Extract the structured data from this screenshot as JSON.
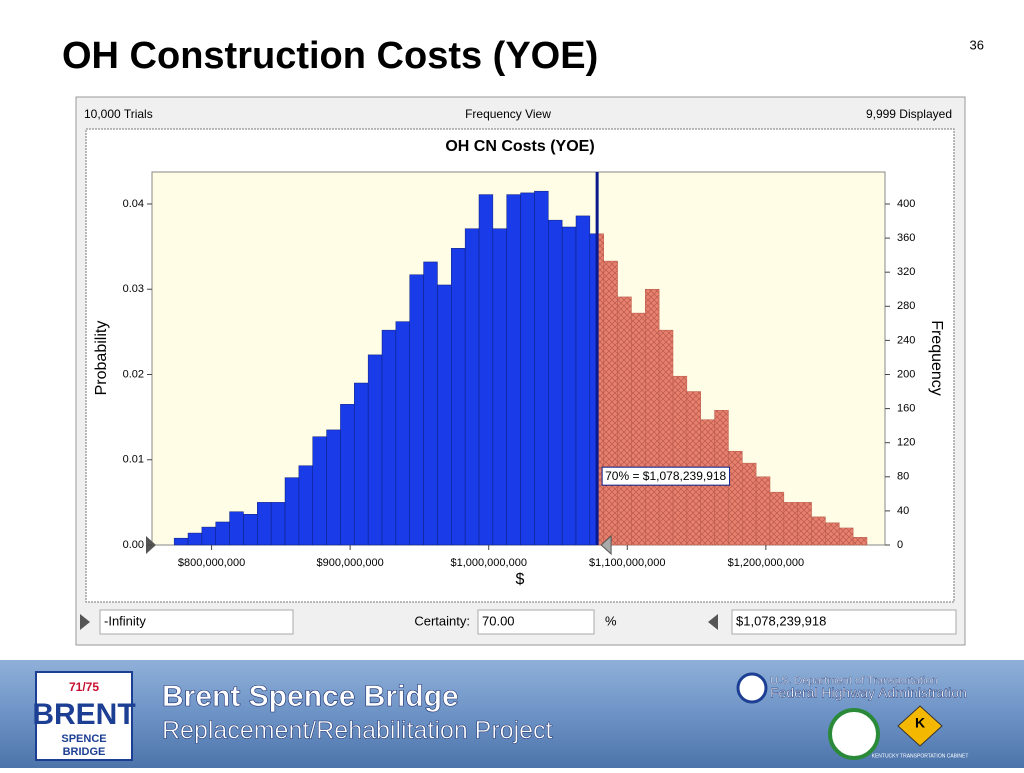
{
  "slide": {
    "title": "OH Construction Costs (YOE)",
    "page_number": "36"
  },
  "header": {
    "trials": "10,000 Trials",
    "view": "Frequency View",
    "displayed": "9,999 Displayed"
  },
  "chart_data": {
    "type": "histogram",
    "title": "OH CN Costs (YOE)",
    "x_label": "$",
    "y_label": "Probability",
    "y2_label": "Frequency",
    "bins": [
      773000000,
      783000000,
      793000000,
      803000000,
      813000000,
      823000000,
      833000000,
      843000000,
      853000000,
      863000000,
      873000000,
      883000000,
      893000000,
      903000000,
      913000000,
      923000000,
      933000000,
      943000000,
      953000000,
      963000000,
      973000000,
      983000000,
      993000000,
      1003000000,
      1013000000,
      1023000000,
      1033000000,
      1043000000,
      1053000000,
      1063000000,
      1073000000,
      1083000000,
      1093000000,
      1103000000,
      1113000000,
      1123000000,
      1133000000,
      1143000000,
      1153000000,
      1163000000,
      1173000000,
      1183000000,
      1193000000,
      1203000000,
      1213000000,
      1223000000,
      1233000000,
      1243000000,
      1253000000,
      1263000000,
      1273000000
    ],
    "values": [
      0.0008,
      0.0014,
      0.0021,
      0.0027,
      0.0039,
      0.0036,
      0.005,
      0.005,
      0.0079,
      0.0093,
      0.0127,
      0.0135,
      0.0165,
      0.019,
      0.0223,
      0.0252,
      0.0262,
      0.0317,
      0.0332,
      0.0305,
      0.0348,
      0.0371,
      0.0411,
      0.0371,
      0.0411,
      0.0413,
      0.0415,
      0.0381,
      0.0373,
      0.0386,
      0.0365,
      0.0333,
      0.0291,
      0.0272,
      0.03,
      0.0252,
      0.0198,
      0.018,
      0.0147,
      0.0158,
      0.011,
      0.0096,
      0.008,
      0.0062,
      0.005,
      0.005,
      0.0033,
      0.0026,
      0.002,
      0.0009
    ],
    "left_color": "#1a3be8",
    "right_color": "#e8806e",
    "hatch_color": "#b85a4c",
    "cutoff_color": "#0a1a8c",
    "cutoff": 1078239918,
    "cutoff_label": "70% = $1,078,239,918",
    "xlim": [
      757000000,
      1286000000
    ],
    "xticks": [
      {
        "value": 800000000,
        "label": "$800,000,000"
      },
      {
        "value": 900000000,
        "label": "$900,000,000"
      },
      {
        "value": 1000000000,
        "label": "$1,000,000,000"
      },
      {
        "value": 1100000000,
        "label": "$1,100,000,000"
      },
      {
        "value": 1200000000,
        "label": "$1,200,000,000"
      }
    ],
    "ylim": [
      0,
      0.04375
    ],
    "yticks": [
      {
        "value": 0,
        "label": "0.00"
      },
      0.01,
      0.02,
      0.03,
      0.04
    ],
    "y2lim": [
      0,
      437.5
    ],
    "y2ticks": [
      0,
      40,
      80,
      120,
      160,
      200,
      240,
      280,
      320,
      360,
      400
    ],
    "grid": false
  },
  "controls": {
    "left": "-Infinity",
    "certainty_label": "Certainty:",
    "certainty": "70.00",
    "percent": "%",
    "right": "$1,078,239,918"
  },
  "footer": {
    "shield": "71/75",
    "brent": "BRENT",
    "spence": "SPENCE",
    "bridge": "BRIDGE",
    "title": "Brent Spence Bridge",
    "subtitle": "Replacement/Rehabilitation Project",
    "dot": "U.S. Department of Transportation",
    "fhwa": "Federal Highway Administration",
    "ky": "K",
    "ky_text": "KENTUCKY TRANSPORTATION CABINET"
  }
}
